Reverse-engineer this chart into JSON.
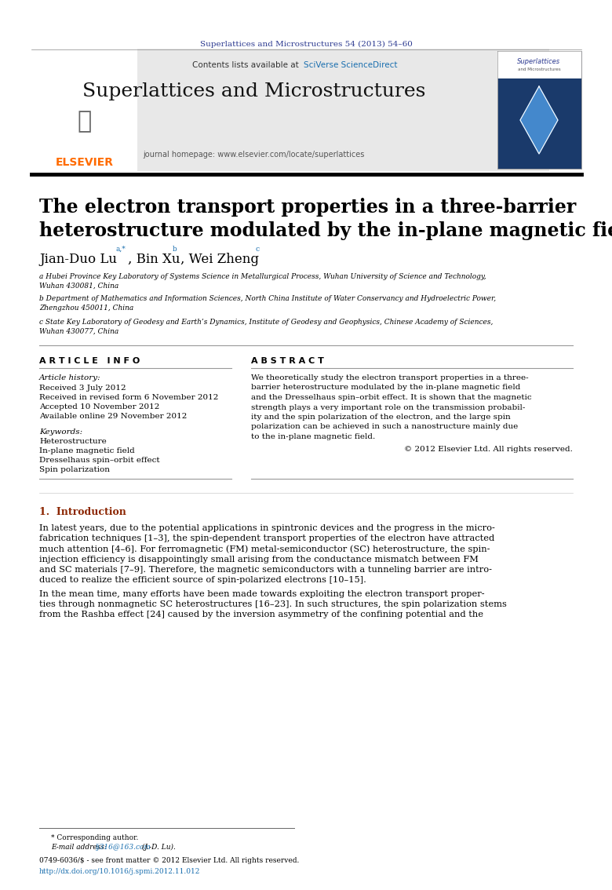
{
  "page_width": 7.8,
  "page_height": 11.34,
  "background_color": "#ffffff",
  "journal_ref_text": "Superlattices and Microstructures 54 (2013) 54–60",
  "journal_ref_color": "#2b3990",
  "journal_ref_fontsize": 7.5,
  "header_bg_color": "#e8e8e8",
  "header_journal_title": "Superlattices and Microstructures",
  "header_contents_text": "Contents lists available at ",
  "header_sciverse_text": "SciVerse ScienceDirect",
  "header_sciverse_color": "#1a6faf",
  "header_homepage_text": "journal homepage: www.elsevier.com/locate/superlattices",
  "elsevier_color": "#ff6b00",
  "article_title": "The electron transport properties in a three-barrier\nheterostructure modulated by the in-plane magnetic field",
  "article_title_fontsize": 17,
  "authors_fontsize": 12,
  "affil_a": "a Hubei Province Key Laboratory of Systems Science in Metallurgical Process, Wuhan University of Science and Technology,\nWuhan 430081, China",
  "affil_b": "b Department of Mathematics and Information Sciences, North China Institute of Water Conservancy and Hydroelectric Power,\nZhengzhou 450011, China",
  "affil_c": "c State Key Laboratory of Geodesy and Earth’s Dynamics, Institute of Geodesy and Geophysics, Chinese Academy of Sciences,\nWuhan 430077, China",
  "affil_fontsize": 6.5,
  "section_article_info": "A R T I C L E   I N F O",
  "section_abstract": "A B S T R A C T",
  "section_fontsize": 8,
  "article_history_label": "Article history:",
  "received1": "Received 3 July 2012",
  "received2": "Received in revised form 6 November 2012",
  "accepted": "Accepted 10 November 2012",
  "available": "Available online 29 November 2012",
  "keywords_label": "Keywords:",
  "keyword1": "Heterostructure",
  "keyword2": "In-plane magnetic field",
  "keyword3": "Dresselhaus spin–orbit effect",
  "keyword4": "Spin polarization",
  "abstract_lines": [
    "We theoretically study the electron transport properties in a three-",
    "barrier heterostructure modulated by the in-plane magnetic field",
    "and the Dresselhaus spin–orbit effect. It is shown that the magnetic",
    "strength plays a very important role on the transmission probabil-",
    "ity and the spin polarization of the electron, and the large spin",
    "polarization can be achieved in such a nanostructure mainly due",
    "to the in-plane magnetic field."
  ],
  "copyright_text": "© 2012 Elsevier Ltd. All rights reserved.",
  "intro_heading": "1.  Introduction",
  "intro_color": "#8b2500",
  "intro_p1_lines": [
    "In latest years, due to the potential applications in spintronic devices and the progress in the micro-",
    "fabrication techniques [1–3], the spin-dependent transport properties of the electron have attracted",
    "much attention [4–6]. For ferromagnetic (FM) metal-semiconductor (SC) heterostructure, the spin-",
    "injection efficiency is disappointingly small arising from the conductance mismatch between FM",
    "and SC materials [7–9]. Therefore, the magnetic semiconductors with a tunneling barrier are intro-",
    "duced to realize the efficient source of spin-polarized electrons [10–15]."
  ],
  "intro_p2_lines": [
    "In the mean time, many efforts have been made towards exploiting the electron transport proper-",
    "ties through nonmagnetic SC heterostructures [16–23]. In such structures, the spin polarization stems",
    "from the Rashba effect [24] caused by the inversion asymmetry of the confining potential and the"
  ],
  "footer_star": "* Corresponding author.",
  "footer_email_label": "E-mail address: ",
  "footer_email": "lj316@163.com",
  "footer_email_suffix": " (J.-D. Lu).",
  "footer_issn": "0749-6036/$ - see front matter © 2012 Elsevier Ltd. All rights reserved.",
  "footer_doi": "http://dx.doi.org/10.1016/j.spmi.2012.11.012",
  "footer_color": "#1a6faf",
  "text_color": "#000000",
  "info_fontsize": 7.5,
  "body_fontsize": 8.2
}
